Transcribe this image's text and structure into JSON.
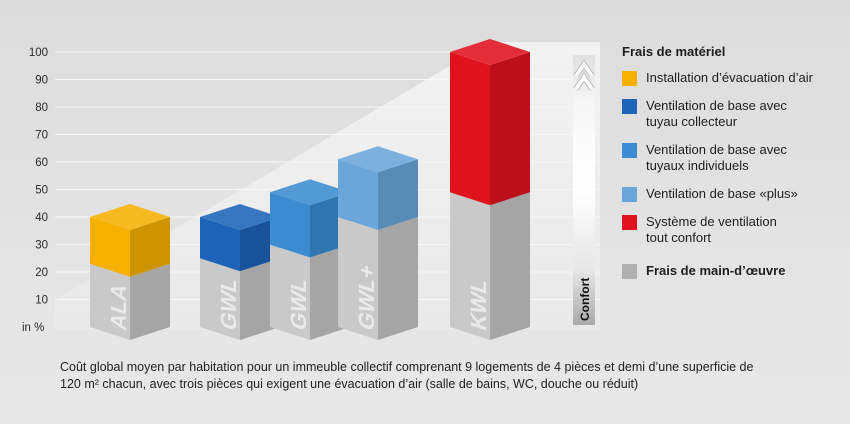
{
  "chart_data": {
    "type": "bar",
    "stacked": true,
    "categories": [
      "ALA",
      "GWL",
      "GWL",
      "GWL+",
      "KWL"
    ],
    "series": [
      {
        "name": "Frais de main-d’œuvre",
        "values": [
          23,
          25,
          30,
          40,
          49
        ],
        "color": "#b0b0b0"
      },
      {
        "name": "Frais de matériel",
        "values": [
          17,
          15,
          19,
          21,
          51
        ]
      }
    ],
    "ylabel": "in %",
    "yticks": [
      10,
      20,
      30,
      40,
      50,
      60,
      70,
      80,
      90,
      100
    ],
    "ylim": [
      0,
      100
    ],
    "grid": true,
    "side_label": "Confort",
    "legend": {
      "position": "right",
      "material_items": [
        {
          "label": "Installation d’évacuation d’air",
          "color": "#f5b000"
        },
        {
          "label": "Ventilation de base avec\ntuyau collecteur",
          "color": "#1d63b7"
        },
        {
          "label": "Ventilation de base avec\ntuyaux individuels",
          "color": "#3a8bcf"
        },
        {
          "label": "Ventilation de base «plus»",
          "color": "#6aa6da"
        },
        {
          "label": "Système de ventilation\ntout confort",
          "color": "#df121e"
        }
      ]
    }
  },
  "caption": "Coût global moyen par habitation pour un immeuble collectif comprenant 9 logements de 4 pièces et demi d’une superficie de\n120 m² chacun, avec trois pièces qui exigent une évacuation d’air (salle de bains, WC, douche ou réduit)"
}
